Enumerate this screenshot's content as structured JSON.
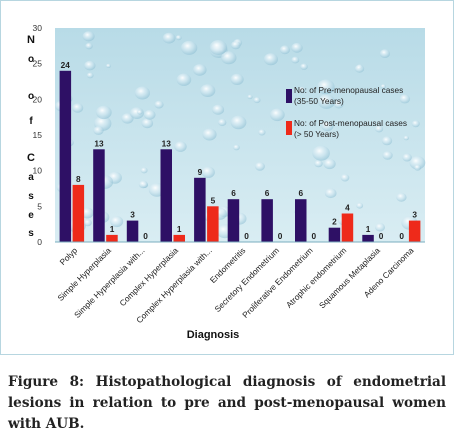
{
  "chart_data": {
    "type": "bar",
    "ylabel": "No of Cases",
    "xlabel": "Diagnosis",
    "ylim": [
      0,
      30
    ],
    "yticks": [
      "0",
      "5",
      "10",
      "15",
      "20",
      "25",
      "30"
    ],
    "grid": false,
    "legend_position": "top-right",
    "categories": [
      "Polyp",
      "Simple Hyperplasia",
      "Simple Hyperplasia with...",
      "Complex Hyperplasia",
      "Complex Hyperplasia with...",
      "Endometritis",
      "Secretory Endometrium",
      "Proliferative Endometrium",
      "Atrophic endometrium",
      "Squamous Metaplasia",
      "Adeno Carcinoma"
    ],
    "series": [
      {
        "name": "No: of Pre-menopausal cases (35-50 Years)",
        "color": "#2e1065",
        "values": [
          24,
          13,
          3,
          13,
          9,
          6,
          6,
          6,
          2,
          1,
          0
        ]
      },
      {
        "name": "No: of Post-menopausal cases (> 50 Years)",
        "color": "#ee2a1a",
        "values": [
          8,
          1,
          0,
          1,
          5,
          0,
          0,
          0,
          4,
          0,
          3
        ]
      }
    ],
    "value_labels": [
      [
        "24",
        "8"
      ],
      [
        "13",
        "1"
      ],
      [
        "3",
        "0"
      ],
      [
        "13",
        "1"
      ],
      [
        "9",
        "5"
      ],
      [
        "6",
        "0"
      ],
      [
        "6",
        "0"
      ],
      [
        "6",
        "0"
      ],
      [
        "2",
        "4"
      ],
      [
        "1",
        "0"
      ],
      [
        "0",
        "3"
      ]
    ]
  },
  "legend": {
    "pre_line1": "No: of Pre-menopausal cases",
    "pre_line2": "(35-50 Years)",
    "post_line1": "No: of Post-menopausal cases",
    "post_line2": "(> 50 Years)"
  },
  "ylabel_letters": [
    "N",
    "o",
    "o",
    "f",
    "C",
    "a",
    "s",
    "e",
    "s"
  ],
  "caption": "Figure 8: Histopathological diagnosis of endometrial lesions in relation to pre and post-menopausal women with AUB."
}
